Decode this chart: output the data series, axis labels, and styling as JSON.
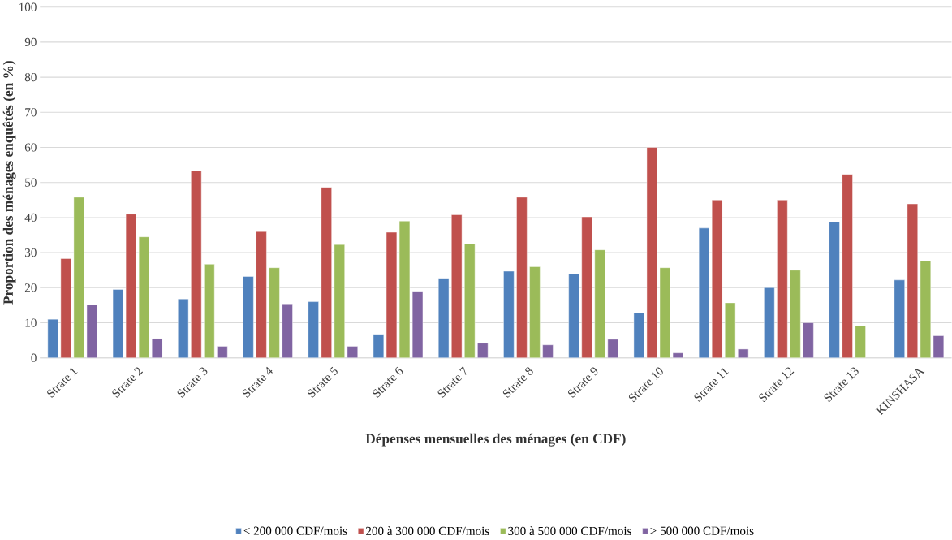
{
  "chart_data": {
    "type": "bar",
    "xlabel": "Dépenses mensuelles des ménages (en CDF)",
    "ylabel": "Proportion des ménages enquêtés (en %)",
    "categories": [
      "Strate 1",
      "Strate 2",
      "Strate 3",
      "Strate 4",
      "Strate 5",
      "Strate 6",
      "Strate 7",
      "Strate 8",
      "Strate 9",
      "Strate 10",
      "Strate 11",
      "Strate 12",
      "Strate 13",
      "KINSHASA"
    ],
    "series": [
      {
        "name": "< 200 000 CDF/mois",
        "color": "#4f81bd",
        "values": [
          11,
          19.5,
          16.8,
          23.2,
          16,
          6.7,
          22.7,
          24.7,
          24,
          12.9,
          37,
          20,
          38.7,
          22.2
        ]
      },
      {
        "name": "200 à 300 000 CDF/mois",
        "color": "#c0504d",
        "values": [
          28.3,
          41,
          53.3,
          36,
          48.6,
          35.8,
          40.8,
          45.8,
          40.2,
          60,
          45,
          45,
          52.3,
          43.9
        ]
      },
      {
        "name": "300 à 500 000 CDF/mois",
        "color": "#9bbb59",
        "values": [
          45.8,
          34.5,
          26.7,
          25.7,
          32.3,
          39,
          32.5,
          26,
          30.8,
          25.7,
          15.7,
          25,
          9.2,
          27.6
        ]
      },
      {
        "name": "> 500 000 CDF/mois",
        "color": "#8064a2",
        "values": [
          15.2,
          5.5,
          3.3,
          15.4,
          3.3,
          19,
          4.2,
          3.7,
          5.3,
          1.4,
          2.5,
          10,
          null,
          6.3
        ]
      }
    ],
    "ylim": [
      0,
      100
    ],
    "yticks": [
      0,
      10,
      20,
      30,
      40,
      50,
      60,
      70,
      80,
      90,
      100
    ],
    "grid": "y",
    "legend": "bottom"
  }
}
